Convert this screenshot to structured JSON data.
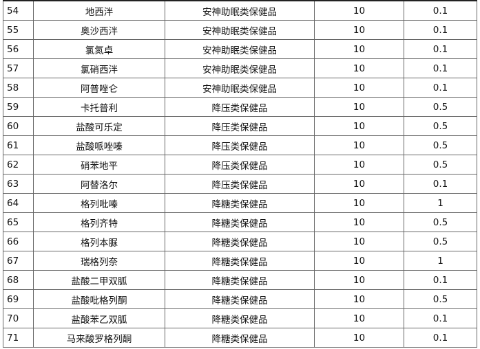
{
  "rows": [
    {
      "no": "54",
      "name": "地西泮",
      "category": "安神助眠类保健品",
      "col4": "10",
      "col5": "0.1"
    },
    {
      "no": "55",
      "name": "奥沙西泮",
      "category": "安神助眠类保健品",
      "col4": "10",
      "col5": "0.1"
    },
    {
      "no": "56",
      "name": "氯氮卓",
      "category": "安神助眠类保健品",
      "col4": "10",
      "col5": "0.1"
    },
    {
      "no": "57",
      "name": "氯硝西泮",
      "category": "安神助眠类保健品",
      "col4": "10",
      "col5": "0.1"
    },
    {
      "no": "58",
      "name": "阿普唑仑",
      "category": "安神助眠类保健品",
      "col4": "10",
      "col5": "0.1"
    },
    {
      "no": "59",
      "name": "卡托普利",
      "category": "降压类保健品",
      "col4": "10",
      "col5": "0.5"
    },
    {
      "no": "60",
      "name": "盐酸可乐定",
      "category": "降压类保健品",
      "col4": "10",
      "col5": "0.5"
    },
    {
      "no": "61",
      "name": "盐酸哌唑嗪",
      "category": "降压类保健品",
      "col4": "10",
      "col5": "0.5"
    },
    {
      "no": "62",
      "name": "硝苯地平",
      "category": "降压类保健品",
      "col4": "10",
      "col5": "0.5"
    },
    {
      "no": "63",
      "name": "阿替洛尔",
      "category": "降压类保健品",
      "col4": "10",
      "col5": "0.1"
    },
    {
      "no": "64",
      "name": "格列吡嗪",
      "category": "降糖类保健品",
      "col4": "10",
      "col5": "1"
    },
    {
      "no": "65",
      "name": "格列齐特",
      "category": "降糖类保健品",
      "col4": "10",
      "col5": "0.5"
    },
    {
      "no": "66",
      "name": "格列本脲",
      "category": "降糖类保健品",
      "col4": "10",
      "col5": "0.5"
    },
    {
      "no": "67",
      "name": "瑞格列奈",
      "category": "降糖类保健品",
      "col4": "10",
      "col5": "1"
    },
    {
      "no": "68",
      "name": "盐酸二甲双胍",
      "category": "降糖类保健品",
      "col4": "10",
      "col5": "0.1"
    },
    {
      "no": "69",
      "name": "盐酸吡格列酮",
      "category": "降糖类保健品",
      "col4": "10",
      "col5": "0.5"
    },
    {
      "no": "70",
      "name": "盐酸苯乙双胍",
      "category": "降糖类保健品",
      "col4": "10",
      "col5": "0.1"
    },
    {
      "no": "71",
      "name": "马来酸罗格列酮",
      "category": "降糖类保健品",
      "col4": "10",
      "col5": "0.1"
    }
  ]
}
